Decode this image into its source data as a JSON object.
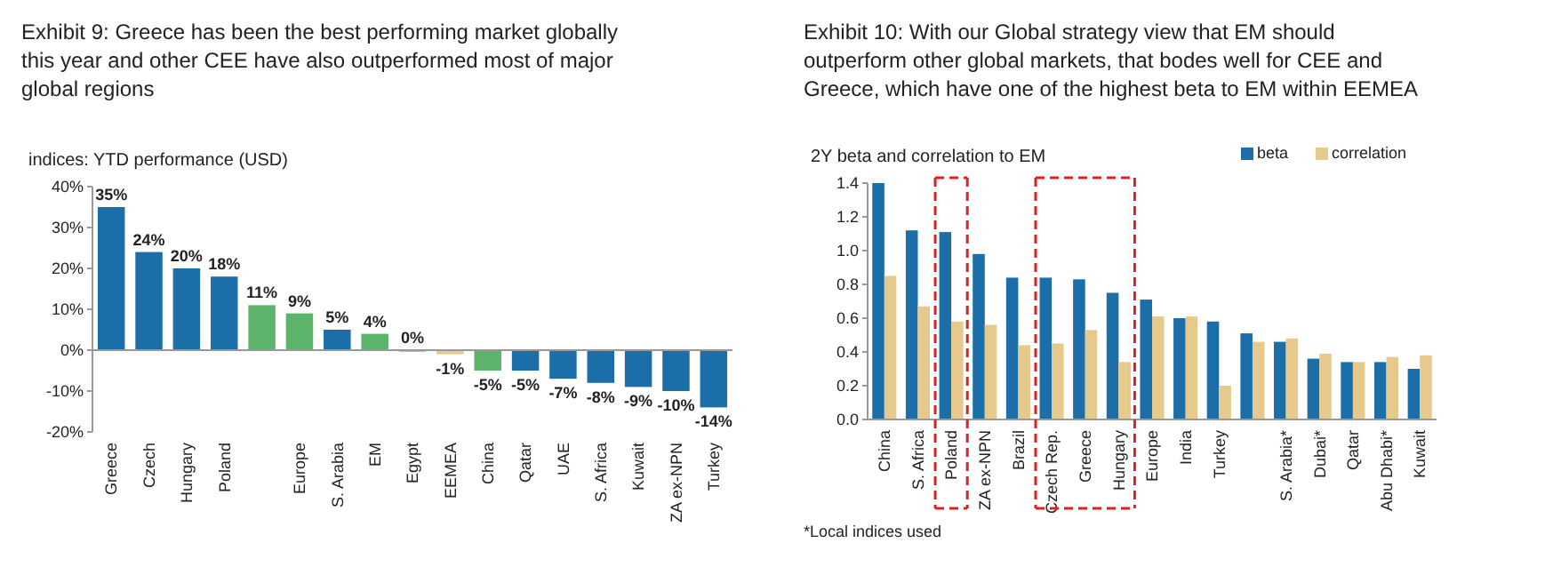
{
  "chart_data": [
    {
      "type": "bar",
      "title": "Exhibit 9: Greece has been the best performing market globally this year and other CEE have also outperformed most of major global regions",
      "subtitle": "indices: YTD performance (USD)",
      "categories": [
        "Greece",
        "Czech",
        "Hungary",
        "Poland",
        null,
        "Europe",
        "S. Arabia",
        "EM",
        "Egypt",
        "EEMEA",
        "China",
        "Qatar",
        "UAE",
        "S. Africa",
        "Kuwait",
        "ZA ex-NPN",
        "Turkey"
      ],
      "values": [
        35,
        24,
        20,
        18,
        11,
        9,
        5,
        4,
        0,
        -1,
        -5,
        -5,
        -7,
        -8,
        -9,
        -10,
        -14
      ],
      "colors": [
        "#1b6ea8",
        "#1b6ea8",
        "#1b6ea8",
        "#1b6ea8",
        "#5cb46b",
        "#5cb46b",
        "#1b6ea8",
        "#5cb46b",
        "#5cb46b",
        "#e6c98c",
        "#5cb46b",
        "#1b6ea8",
        "#1b6ea8",
        "#1b6ea8",
        "#1b6ea8",
        "#1b6ea8",
        "#1b6ea8"
      ],
      "ylim": [
        -20,
        40
      ],
      "yticks": [
        {
          "value": -20,
          "label": "-20%"
        },
        {
          "value": -10,
          "label": "-10%"
        },
        {
          "value": 0,
          "label": "0%"
        },
        {
          "value": 10,
          "label": "10%"
        },
        {
          "value": 20,
          "label": "20%"
        },
        {
          "value": 30,
          "label": "30%"
        },
        {
          "value": 40,
          "label": "40%"
        }
      ],
      "value_labels": [
        "35%",
        "24%",
        "20%",
        "18%",
        "11%",
        "9%",
        "5%",
        "4%",
        "0%",
        "-1%",
        "-5%",
        "-5%",
        "-7%",
        "-8%",
        "-9%",
        "-10%",
        "-14%"
      ],
      "grid": false,
      "legend": false,
      "ref_lines": [
        {
          "axis": "y",
          "value": 0,
          "color": "#999999"
        }
      ]
    },
    {
      "type": "bar",
      "title": "Exhibit 10: With our Global strategy view that EM should outperform other global markets, that bodes well for CEE and Greece, which have one of the highest beta to EM within EEMEA",
      "subtitle": "2Y beta and correlation to EM",
      "categories": [
        "China",
        "S. Africa",
        "Poland",
        "ZA ex-NPN",
        "Brazil",
        "Czech Rep.",
        "Greece",
        "Hungary",
        "Europe",
        "India",
        "Turkey",
        null,
        "S. Arabia*",
        "Dubai*",
        "Qatar",
        "Abu Dhabi*",
        "Kuwait"
      ],
      "series": [
        {
          "name": "beta",
          "color": "#1b6ea8",
          "values": [
            1.4,
            1.12,
            1.11,
            0.98,
            0.84,
            0.84,
            0.83,
            0.75,
            0.71,
            0.6,
            0.58,
            0.51,
            0.46,
            0.36,
            0.34,
            0.34,
            0.3
          ]
        },
        {
          "name": "correlation",
          "color": "#e6c98c",
          "values": [
            0.85,
            0.67,
            0.58,
            0.56,
            0.44,
            0.45,
            0.53,
            0.34,
            0.61,
            0.61,
            0.2,
            0.46,
            0.48,
            0.39,
            0.34,
            0.37,
            0.38
          ]
        }
      ],
      "ylim": [
        0,
        1.4
      ],
      "yticks": [
        {
          "value": 0,
          "label": "0.0"
        },
        {
          "value": 0.2,
          "label": "0.2"
        },
        {
          "value": 0.4,
          "label": "0.4"
        },
        {
          "value": 0.6,
          "label": "0.6"
        },
        {
          "value": 0.8,
          "label": "0.8"
        },
        {
          "value": 1,
          "label": "1.0"
        },
        {
          "value": 1.2,
          "label": "1.2"
        },
        {
          "value": 1.4,
          "label": "1.4"
        }
      ],
      "grid": false,
      "legend": "top right",
      "annotations": [
        "*Local indices used"
      ]
    }
  ]
}
